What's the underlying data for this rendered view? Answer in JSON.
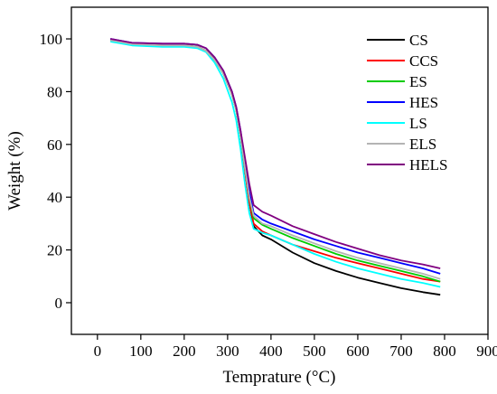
{
  "chart_data": {
    "type": "line",
    "title": "",
    "xlabel": "Temprature (°C)",
    "ylabel": "Weight (%)",
    "xlim": [
      -60,
      900
    ],
    "ylim": [
      -12,
      112
    ],
    "xticks": [
      "0",
      "100",
      "200",
      "300",
      "400",
      "500",
      "600",
      "700",
      "800",
      "900"
    ],
    "yticks": [
      "0",
      "20",
      "40",
      "60",
      "80",
      "100"
    ],
    "grid": false,
    "legend_position": "top-right",
    "series": [
      {
        "name": "CS",
        "color": "#000000",
        "x": [
          30,
          80,
          150,
          200,
          230,
          250,
          270,
          290,
          310,
          320,
          330,
          340,
          350,
          360,
          380,
          400,
          450,
          500,
          550,
          600,
          650,
          700,
          750,
          790
        ],
        "y": [
          99.5,
          98,
          97.5,
          97.5,
          97,
          95.5,
          92,
          87,
          79,
          73,
          63,
          50,
          38,
          29,
          25.5,
          24,
          19,
          15,
          12,
          9.5,
          7.5,
          5.5,
          4,
          3
        ]
      },
      {
        "name": "CCS",
        "color": "#ff0000",
        "x": [
          30,
          80,
          150,
          200,
          230,
          250,
          270,
          290,
          310,
          320,
          330,
          340,
          350,
          360,
          380,
          400,
          450,
          500,
          550,
          600,
          650,
          700,
          750,
          790
        ],
        "y": [
          99.5,
          98,
          97.5,
          97.5,
          97,
          95.5,
          92,
          87,
          79,
          73,
          63,
          50,
          38,
          30,
          27,
          25.5,
          22,
          19.5,
          17,
          15,
          13,
          11,
          9,
          8
        ]
      },
      {
        "name": "ES",
        "color": "#00cc00",
        "x": [
          30,
          80,
          150,
          200,
          230,
          250,
          270,
          290,
          310,
          320,
          330,
          340,
          350,
          360,
          380,
          400,
          450,
          500,
          550,
          600,
          650,
          700,
          750,
          790
        ],
        "y": [
          99.5,
          98,
          97.5,
          97.5,
          97,
          95.5,
          92,
          87,
          79,
          73,
          63,
          51,
          40,
          32,
          29.5,
          28,
          24.5,
          21.5,
          18.5,
          16,
          14,
          12,
          10,
          8
        ]
      },
      {
        "name": "HES",
        "color": "#0000ff",
        "x": [
          30,
          80,
          150,
          200,
          230,
          250,
          270,
          290,
          310,
          320,
          330,
          340,
          350,
          360,
          380,
          400,
          450,
          500,
          550,
          600,
          650,
          700,
          750,
          790
        ],
        "y": [
          100,
          98.5,
          98.2,
          98.2,
          97.8,
          96.5,
          93,
          88,
          80,
          74,
          65,
          53,
          42,
          34,
          31.5,
          30,
          27,
          24,
          21.5,
          19,
          17,
          15,
          13,
          11
        ]
      },
      {
        "name": "LS",
        "color": "#00ffff",
        "x": [
          30,
          80,
          150,
          200,
          230,
          250,
          270,
          290,
          310,
          320,
          330,
          340,
          350,
          360,
          380,
          400,
          450,
          500,
          550,
          600,
          650,
          700,
          750,
          790
        ],
        "y": [
          99,
          97.5,
          97,
          97,
          96.5,
          95,
          91,
          85,
          76,
          69,
          58,
          45,
          34,
          28,
          26.5,
          25.5,
          22,
          18.5,
          15.5,
          13,
          11,
          9,
          7.5,
          6
        ]
      },
      {
        "name": "ELS",
        "color": "#b4b4b4",
        "x": [
          30,
          80,
          150,
          200,
          230,
          250,
          270,
          290,
          310,
          320,
          330,
          340,
          350,
          360,
          380,
          400,
          450,
          500,
          550,
          600,
          650,
          700,
          750,
          790
        ],
        "y": [
          99.5,
          98,
          97.5,
          97.5,
          97,
          95.5,
          92,
          87,
          79,
          73,
          63,
          51,
          40,
          33,
          30,
          29,
          25.5,
          22.5,
          19.5,
          17,
          15,
          13,
          11,
          9
        ]
      },
      {
        "name": "HELS",
        "color": "#800080",
        "x": [
          30,
          80,
          150,
          200,
          230,
          250,
          270,
          290,
          310,
          320,
          330,
          340,
          350,
          360,
          380,
          400,
          450,
          500,
          550,
          600,
          650,
          700,
          750,
          790
        ],
        "y": [
          100,
          98.5,
          98.2,
          98.2,
          97.8,
          96.5,
          93,
          88,
          80,
          74,
          65,
          55,
          45,
          37,
          34.5,
          33,
          29,
          26,
          23,
          20.5,
          18,
          16,
          14.5,
          13
        ]
      }
    ]
  }
}
